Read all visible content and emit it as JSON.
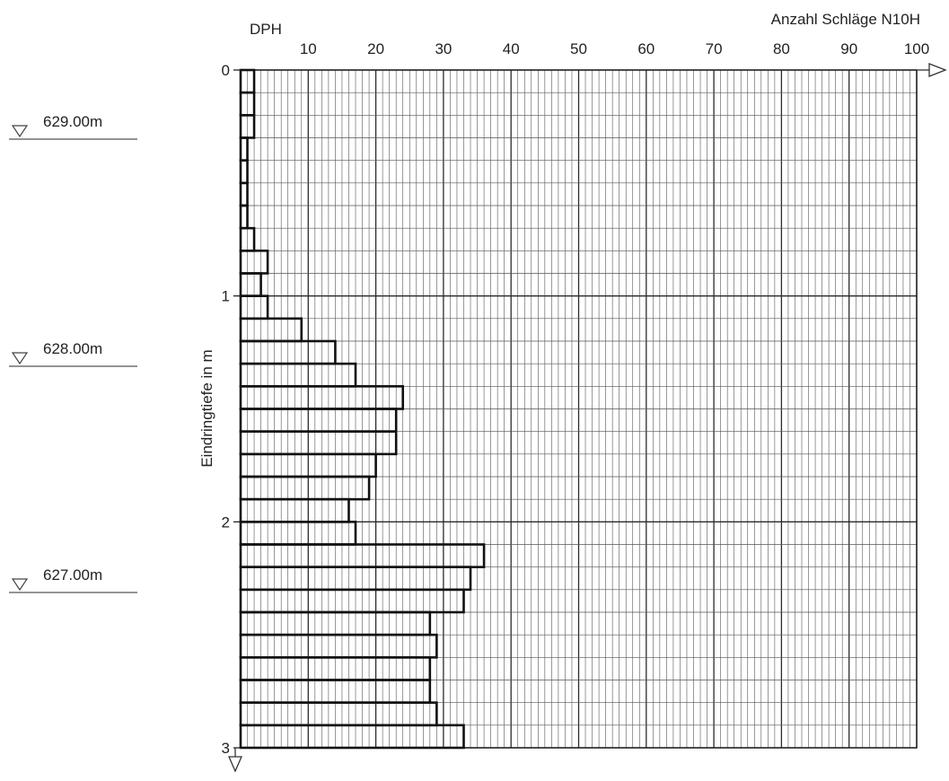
{
  "chart_data": {
    "type": "bar",
    "orientation": "horizontal",
    "title": "DPH",
    "xlabel": "Anzahl Schläge N10H",
    "ylabel": "Eindringtiefe in m",
    "xlim": [
      0,
      100
    ],
    "ylim": [
      0,
      3
    ],
    "x_ticks": [
      "10",
      "20",
      "30",
      "40",
      "50",
      "60",
      "70",
      "80",
      "90",
      "100"
    ],
    "y_ticks": [
      "0",
      "1",
      "2",
      "3"
    ],
    "grid": true,
    "depth_step_m": 0.1,
    "values": [
      2,
      2,
      2,
      1,
      1,
      1,
      1,
      2,
      4,
      3,
      4,
      9,
      14,
      17,
      24,
      23,
      23,
      20,
      19,
      16,
      17,
      36,
      34,
      33,
      28,
      29,
      28,
      28,
      29,
      33
    ],
    "elevations": [
      "629.00m",
      "628.00m",
      "627.00m"
    ]
  }
}
